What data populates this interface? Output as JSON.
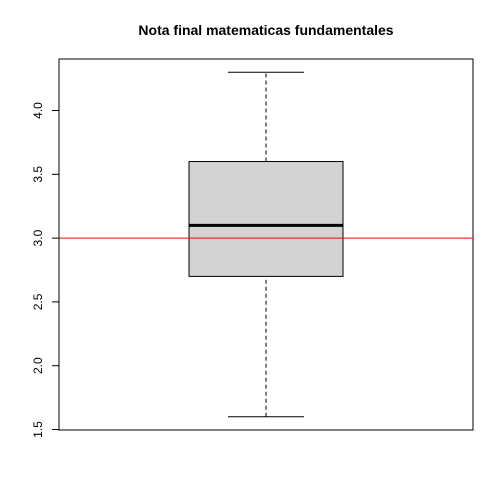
{
  "chart_data": {
    "type": "boxplot",
    "title": "Nota final matematicas fundamentales",
    "xlabel": "",
    "ylabel": "",
    "ylim": [
      1.5,
      4.3
    ],
    "yticks": [
      "1.5",
      "2.0",
      "2.5",
      "3.0",
      "3.5",
      "4.0"
    ],
    "box": {
      "min": 1.6,
      "q1": 2.7,
      "median": 3.1,
      "q3": 3.6,
      "max": 4.3
    },
    "reference_line": {
      "value": 3.0,
      "color": "#ff0000"
    },
    "box_fill": "#d3d3d3"
  }
}
